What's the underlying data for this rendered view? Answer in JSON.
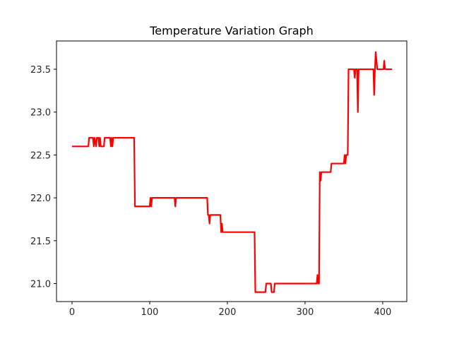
{
  "chart_data": {
    "type": "line",
    "title": "Temperature Variation Graph",
    "xlabel": "",
    "ylabel": "",
    "xlim": [
      -20,
      431
    ],
    "ylim": [
      20.79,
      23.83
    ],
    "x_ticks": [
      0,
      100,
      200,
      300,
      400
    ],
    "y_ticks": [
      21.0,
      21.5,
      22.0,
      22.5,
      23.0,
      23.5
    ],
    "x_tick_labels": [
      "0",
      "100",
      "200",
      "300",
      "400"
    ],
    "y_tick_labels": [
      "21.0",
      "21.5",
      "22.0",
      "22.5",
      "23.0",
      "23.5"
    ],
    "grid": false,
    "legend": false,
    "series": [
      {
        "color": "#ff0000",
        "points": [
          [
            0,
            22.6
          ],
          [
            21,
            22.6
          ],
          [
            22,
            22.7
          ],
          [
            27,
            22.7
          ],
          [
            28,
            22.6
          ],
          [
            29,
            22.7
          ],
          [
            31,
            22.6
          ],
          [
            32,
            22.7
          ],
          [
            34,
            22.7
          ],
          [
            35,
            22.6
          ],
          [
            36,
            22.7
          ],
          [
            37,
            22.6
          ],
          [
            41,
            22.6
          ],
          [
            42,
            22.7
          ],
          [
            49,
            22.7
          ],
          [
            50,
            22.6
          ],
          [
            51,
            22.7
          ],
          [
            52,
            22.6
          ],
          [
            53,
            22.7
          ],
          [
            80,
            22.7
          ],
          [
            81,
            21.9
          ],
          [
            100,
            21.9
          ],
          [
            101,
            22.0
          ],
          [
            102,
            21.9
          ],
          [
            103,
            22.0
          ],
          [
            132,
            22.0
          ],
          [
            133,
            21.9
          ],
          [
            134,
            22.0
          ],
          [
            174,
            22.0
          ],
          [
            175,
            21.8
          ],
          [
            176,
            21.8
          ],
          [
            177,
            21.7
          ],
          [
            178,
            21.8
          ],
          [
            191,
            21.8
          ],
          [
            192,
            21.6
          ],
          [
            193,
            21.7
          ],
          [
            194,
            21.6
          ],
          [
            235,
            21.6
          ],
          [
            236,
            20.9
          ],
          [
            249,
            20.9
          ],
          [
            250,
            21.0
          ],
          [
            256,
            21.0
          ],
          [
            257,
            20.9
          ],
          [
            260,
            20.9
          ],
          [
            261,
            21.0
          ],
          [
            315,
            21.0
          ],
          [
            316,
            21.1
          ],
          [
            317,
            21.0
          ],
          [
            318,
            21.0
          ],
          [
            319,
            22.3
          ],
          [
            320,
            22.2
          ],
          [
            321,
            22.3
          ],
          [
            333,
            22.3
          ],
          [
            334,
            22.4
          ],
          [
            350,
            22.4
          ],
          [
            351,
            22.5
          ],
          [
            352,
            22.4
          ],
          [
            353,
            22.5
          ],
          [
            355,
            22.5
          ],
          [
            356,
            23.5
          ],
          [
            363,
            23.5
          ],
          [
            364,
            23.4
          ],
          [
            365,
            23.5
          ],
          [
            367,
            23.5
          ],
          [
            368,
            23.0
          ],
          [
            369,
            23.5
          ],
          [
            388,
            23.5
          ],
          [
            389,
            23.2
          ],
          [
            390,
            23.5
          ],
          [
            391,
            23.7
          ],
          [
            392,
            23.6
          ],
          [
            393,
            23.5
          ],
          [
            401,
            23.5
          ],
          [
            402,
            23.6
          ],
          [
            403,
            23.5
          ],
          [
            412,
            23.5
          ]
        ]
      }
    ]
  },
  "style": {
    "line_color": "#ff0000",
    "axes_color": "#000000",
    "background": "#ffffff"
  }
}
